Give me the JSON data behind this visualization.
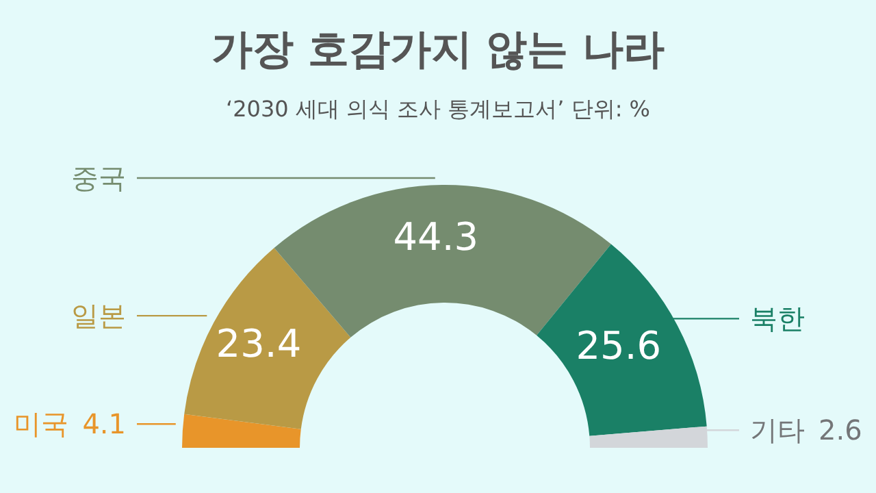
{
  "chart_data": {
    "type": "donut",
    "title": "가장 호감가지 않는 나라",
    "subtitle": "‘2030 세대 의식 조사 통계보고서’ 단위: %",
    "categories": [
      "미국",
      "일본",
      "중국",
      "북한",
      "기타"
    ],
    "values": [
      4.1,
      23.4,
      44.3,
      25.6,
      2.6
    ],
    "colors": [
      "#e8952a",
      "#b99a45",
      "#758c6f",
      "#1a8066",
      "#d3d6da"
    ],
    "data_labels": true,
    "legend": false
  }
}
